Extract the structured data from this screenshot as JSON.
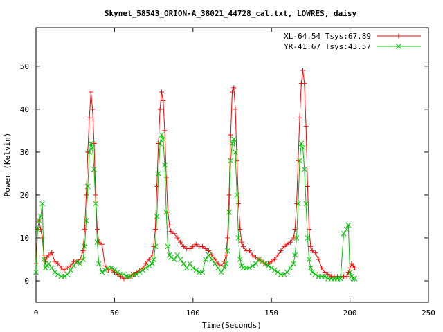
{
  "chart_data": {
    "type": "line",
    "title": "Skynet_58543_ORION-A_38021_44728_cal.txt, LOWRES, daisy",
    "xlabel": "Time(Seconds)",
    "ylabel": "Power (Kelvin)",
    "xlim": [
      0,
      250
    ],
    "ylim": [
      -5,
      59
    ],
    "x_ticks": [
      0,
      50,
      100,
      150,
      200,
      250
    ],
    "y_ticks": [
      0,
      10,
      20,
      30,
      40,
      50
    ],
    "grid": false,
    "legend_position": "top-right",
    "series": [
      {
        "name": "XL-64.54 Tsys:67.89",
        "color": "#ff0000",
        "marker": "plus",
        "x": [
          0,
          1,
          2,
          3,
          4,
          5,
          6,
          7,
          8,
          10,
          12,
          14,
          16,
          18,
          20,
          22,
          24,
          26,
          28,
          30,
          31,
          32,
          33,
          34,
          35,
          36,
          37,
          38,
          39,
          40,
          42,
          44,
          46,
          48,
          50,
          52,
          54,
          56,
          58,
          60,
          62,
          64,
          66,
          68,
          70,
          72,
          74,
          75,
          76,
          77,
          78,
          79,
          80,
          81,
          82,
          83,
          84,
          85,
          86,
          88,
          90,
          92,
          94,
          96,
          98,
          100,
          102,
          104,
          106,
          108,
          110,
          112,
          114,
          116,
          118,
          120,
          121,
          122,
          123,
          124,
          125,
          126,
          127,
          128,
          129,
          130,
          131,
          132,
          134,
          136,
          138,
          140,
          142,
          144,
          146,
          148,
          150,
          152,
          154,
          156,
          158,
          160,
          162,
          164,
          165,
          166,
          167,
          168,
          169,
          170,
          171,
          172,
          173,
          174,
          175,
          176,
          178,
          180,
          182,
          184,
          186,
          188,
          190,
          192,
          194,
          196,
          198,
          199,
          200,
          201,
          202,
          203
        ],
        "values": [
          4.0,
          12.0,
          14.0,
          12.0,
          10.0,
          6.0,
          4.5,
          5.5,
          6.0,
          6.5,
          4.5,
          4.0,
          3.0,
          2.5,
          3.0,
          3.5,
          4.5,
          4.5,
          5.0,
          7.0,
          12.0,
          20.0,
          30.0,
          38.0,
          44.0,
          40.0,
          32.0,
          20.0,
          12.0,
          9.0,
          8.5,
          3.5,
          2.5,
          2.5,
          2.0,
          1.5,
          1.0,
          0.5,
          0.5,
          1.0,
          1.5,
          2.0,
          2.5,
          3.0,
          4.0,
          5.0,
          6.0,
          8.0,
          12.0,
          22.0,
          32.0,
          40.0,
          44.0,
          42.0,
          35.0,
          24.0,
          16.0,
          13.0,
          11.5,
          11.0,
          10.0,
          9.0,
          8.0,
          7.5,
          7.5,
          8.0,
          8.5,
          8.0,
          8.0,
          7.5,
          7.0,
          6.0,
          5.0,
          4.0,
          3.5,
          4.5,
          6.0,
          10.0,
          20.0,
          34.0,
          44.0,
          45.0,
          40.0,
          28.0,
          18.0,
          12.0,
          9.0,
          8.0,
          7.0,
          7.0,
          6.0,
          5.5,
          5.0,
          4.5,
          4.0,
          4.0,
          4.5,
          5.0,
          6.0,
          7.0,
          8.0,
          8.5,
          9.0,
          10.0,
          12.0,
          18.0,
          28.0,
          38.0,
          46.0,
          49.0,
          46.0,
          36.0,
          22.0,
          12.0,
          8.0,
          7.0,
          6.5,
          5.0,
          3.0,
          2.0,
          1.5,
          1.0,
          1.0,
          1.0,
          1.0,
          1.0,
          1.0,
          2.0,
          3.0,
          4.0,
          3.5,
          3.0
        ]
      },
      {
        "name": "YR-41.67 Tsys:43.57",
        "color": "#00c000",
        "marker": "cross",
        "x": [
          0,
          1,
          2,
          3,
          4,
          5,
          6,
          7,
          8,
          10,
          12,
          14,
          16,
          18,
          20,
          22,
          24,
          26,
          28,
          30,
          31,
          32,
          33,
          34,
          35,
          36,
          37,
          38,
          39,
          40,
          42,
          44,
          46,
          48,
          50,
          52,
          54,
          56,
          58,
          60,
          62,
          64,
          66,
          68,
          70,
          72,
          74,
          75,
          76,
          77,
          78,
          79,
          80,
          81,
          82,
          83,
          84,
          85,
          86,
          88,
          90,
          92,
          94,
          96,
          98,
          100,
          102,
          104,
          106,
          108,
          110,
          112,
          114,
          116,
          118,
          120,
          121,
          122,
          123,
          124,
          125,
          126,
          127,
          128,
          129,
          130,
          131,
          132,
          134,
          136,
          138,
          140,
          142,
          144,
          146,
          148,
          150,
          152,
          154,
          156,
          158,
          160,
          162,
          164,
          165,
          166,
          167,
          168,
          169,
          170,
          171,
          172,
          173,
          174,
          175,
          176,
          178,
          180,
          182,
          184,
          186,
          188,
          190,
          192,
          194,
          196,
          198,
          199,
          200,
          201,
          202,
          203
        ],
        "values": [
          2.0,
          12.0,
          14.0,
          15.0,
          18.0,
          5.0,
          3.0,
          3.5,
          4.0,
          3.0,
          2.0,
          1.5,
          1.0,
          1.0,
          1.5,
          2.5,
          3.5,
          4.5,
          4.0,
          5.0,
          8.0,
          14.0,
          22.0,
          30.0,
          32.0,
          31.0,
          26.0,
          18.0,
          9.0,
          4.0,
          2.0,
          2.5,
          3.0,
          3.0,
          2.5,
          2.0,
          1.5,
          1.5,
          1.0,
          1.0,
          1.5,
          1.5,
          2.0,
          2.5,
          3.0,
          3.5,
          4.0,
          5.0,
          8.0,
          15.0,
          25.0,
          32.0,
          34.0,
          33.0,
          27.0,
          16.0,
          8.0,
          6.0,
          5.5,
          5.0,
          6.0,
          5.0,
          4.0,
          3.0,
          4.0,
          3.0,
          2.5,
          2.0,
          2.0,
          5.0,
          6.0,
          5.0,
          4.0,
          3.0,
          2.0,
          3.0,
          4.0,
          7.0,
          16.0,
          28.0,
          32.0,
          33.0,
          30.0,
          20.0,
          10.0,
          5.0,
          3.5,
          3.0,
          3.0,
          3.0,
          3.5,
          4.0,
          5.0,
          4.5,
          4.0,
          3.5,
          3.0,
          2.5,
          2.0,
          1.5,
          1.5,
          2.0,
          3.0,
          4.0,
          6.0,
          10.0,
          18.0,
          28.0,
          32.0,
          31.0,
          26.0,
          18.0,
          10.0,
          5.0,
          3.0,
          2.0,
          1.5,
          1.0,
          1.0,
          1.0,
          0.5,
          0.5,
          0.5,
          0.5,
          0.5,
          11.0,
          12.0,
          13.0,
          2.0,
          1.0,
          0.5,
          0.5
        ]
      }
    ]
  }
}
